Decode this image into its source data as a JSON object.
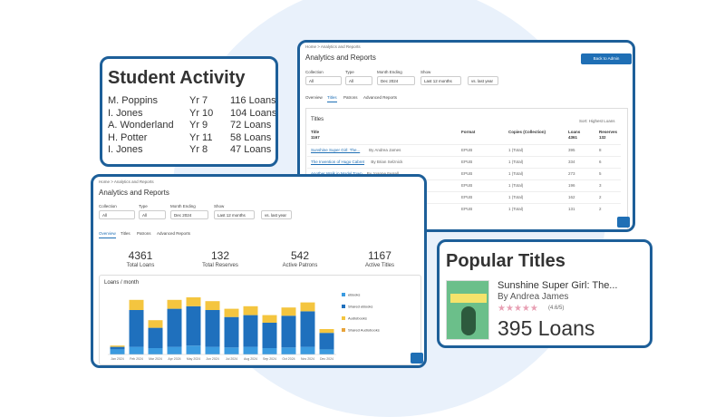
{
  "student_activity": {
    "title": "Student Activity",
    "rows": [
      [
        "M. Poppins",
        "Yr 7",
        "116 Loans"
      ],
      [
        "I. Jones",
        "Yr 10",
        "104 Loans"
      ],
      [
        "A. Wonderland",
        "Yr 9",
        "72 Loans"
      ],
      [
        "H. Potter",
        "Yr 11",
        "58 Loans"
      ],
      [
        "I. Jones",
        "Yr 8",
        "47 Loans"
      ]
    ]
  },
  "titles_report": {
    "breadcrumb": "Home > Analytics and Reports",
    "title": "Analytics and Reports",
    "back_button": "Back to Admin",
    "filters": [
      {
        "label": "Collection",
        "value": "All"
      },
      {
        "label": "Type",
        "value": "All"
      },
      {
        "label": "Month Ending",
        "value": "Dec  2024"
      },
      {
        "label": "Show",
        "value": "Last 12 months"
      }
    ],
    "compare": "vs. last year",
    "tabs": [
      "Overview",
      "Titles",
      "Patrons",
      "Advanced Reports"
    ],
    "section_title": "Titles",
    "sort": "Sort: Highest Loans",
    "columns": [
      {
        "name": "Title",
        "total": "1167"
      },
      {
        "name": "Format",
        "total": null
      },
      {
        "name": "Copies (Collection)",
        "total": null
      },
      {
        "name": "Loans",
        "total": "4361"
      },
      {
        "name": "Reserves",
        "total": "132"
      }
    ],
    "rows": [
      {
        "title": "Sunshine Super Girl: The...",
        "author": "By Andrea James",
        "format": "EPUB",
        "copies": "1 (Total)",
        "loans": "395",
        "reserves": "8"
      },
      {
        "title": "The Invention of Hugo Cabret",
        "author": "By Brian Selznick",
        "format": "EPUB",
        "copies": "1 (Total)",
        "loans": "334",
        "reserves": "6"
      },
      {
        "title": "Another Walk in Model Town",
        "author": "By Joanne Ferrell",
        "format": "EPUB",
        "copies": "1 (Total)",
        "loans": "273",
        "reserves": "5"
      },
      {
        "title": "Animal Farm",
        "author": "By George Orwell",
        "format": "EPUB",
        "copies": "1 (Total)",
        "loans": "196",
        "reserves": "3"
      },
      {
        "title": "Herbalism 101",
        "author": "By Ria Whitford",
        "format": "EPUB",
        "copies": "1 (Total)",
        "loans": "162",
        "reserves": "2"
      },
      {
        "title": "Of Mice and Men",
        "author": "By John Steinbeck",
        "format": "EPUB",
        "copies": "1 (Total)",
        "loans": "131",
        "reserves": "2"
      }
    ]
  },
  "overview_report": {
    "breadcrumb": "Home > Analytics and Reports",
    "title": "Analytics and Reports",
    "filters": [
      {
        "label": "Collection",
        "value": "All"
      },
      {
        "label": "Type",
        "value": "All"
      },
      {
        "label": "Month Ending",
        "value": "Dec  2024"
      },
      {
        "label": "Show",
        "value": "Last 12 months"
      }
    ],
    "compare": "vs. last year",
    "tabs": [
      "Overview",
      "Titles",
      "Patrons",
      "Advanced Reports"
    ],
    "stats": [
      {
        "value": "4361",
        "label": "Total Loans"
      },
      {
        "value": "132",
        "label": "Total Reserves"
      },
      {
        "value": "542",
        "label": "Active Patrons"
      },
      {
        "value": "1167",
        "label": "Active Titles"
      }
    ]
  },
  "chart_data": {
    "type": "bar",
    "title": "Loans / month",
    "stacked": true,
    "categories": [
      "Jan 2024",
      "Feb 2024",
      "Mar 2024",
      "Apr 2024",
      "May 2024",
      "Jun 2024",
      "Jul 2024",
      "Aug 2024",
      "Sep 2024",
      "Oct 2024",
      "Nov 2024",
      "Dec 2024"
    ],
    "series": [
      {
        "name": "eBooks",
        "color": "#3b9be0",
        "values": [
          40,
          60,
          50,
          60,
          70,
          60,
          55,
          60,
          50,
          55,
          60,
          40
        ]
      },
      {
        "name": "Shared eBooks",
        "color": "#1f70bd",
        "values": [
          20,
          290,
          160,
          300,
          310,
          290,
          240,
          250,
          200,
          250,
          280,
          130
        ]
      },
      {
        "name": "Audiobooks",
        "color": "#f4c53f",
        "values": [
          10,
          80,
          60,
          70,
          70,
          70,
          65,
          70,
          60,
          65,
          70,
          30
        ]
      },
      {
        "name": "Shared Audiobooks",
        "color": "#e8a33a",
        "values": [
          0,
          0,
          0,
          0,
          0,
          0,
          0,
          0,
          0,
          0,
          0,
          0
        ]
      }
    ],
    "ylim": [
      0,
      500
    ]
  },
  "popular_titles": {
    "title": "Popular Titles",
    "book_title": "Sunshine Super Girl: The...",
    "author": "By Andrea James",
    "rating": {
      "value": 4.6,
      "label": "(4.6/5)"
    },
    "loans": "395 Loans"
  }
}
